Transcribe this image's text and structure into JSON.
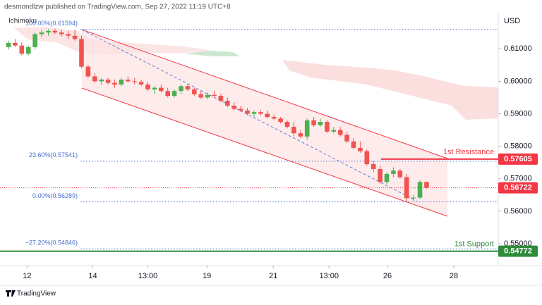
{
  "header": {
    "publisher": "desmondlzw published on TradingView.com, Sep 27, 2022 11:19 UTC+8",
    "brand": "TradingView"
  },
  "chart_data": {
    "type": "candlestick",
    "indicator": "Ichimoku",
    "currency": "USD",
    "up_color": "#4caf50",
    "down_color": "#f05350",
    "ylim": [
      0.5433,
      0.6211
    ],
    "yticks": [
      {
        "value": 0.55,
        "label": "0.55000"
      },
      {
        "value": 0.56,
        "label": "0.56000"
      },
      {
        "value": 0.57,
        "label": "0.57000"
      },
      {
        "value": 0.58,
        "label": "0.58000"
      },
      {
        "value": 0.59,
        "label": "0.59000"
      },
      {
        "value": 0.6,
        "label": "0.60000"
      },
      {
        "value": 0.61,
        "label": "0.61000"
      }
    ],
    "xlim": [
      -1.28,
      73.8
    ],
    "xticks": [
      {
        "value": 2.8,
        "label": "12"
      },
      {
        "value": 12.7,
        "label": "14"
      },
      {
        "value": 21,
        "label": "13:00"
      },
      {
        "value": 29.9,
        "label": "19"
      },
      {
        "value": 39.9,
        "label": "21"
      },
      {
        "value": 48.3,
        "label": "13:00"
      },
      {
        "value": 57.1,
        "label": "26"
      },
      {
        "value": 67.1,
        "label": "28"
      }
    ],
    "ohlc": [
      [
        0.6105,
        0.6125,
        0.6098,
        0.6118
      ],
      [
        0.6118,
        0.613,
        0.6105,
        0.611
      ],
      [
        0.611,
        0.612,
        0.608,
        0.6085
      ],
      [
        0.6085,
        0.611,
        0.608,
        0.6105
      ],
      [
        0.6105,
        0.615,
        0.61,
        0.6145
      ],
      [
        0.6145,
        0.6158,
        0.6135,
        0.615
      ],
      [
        0.615,
        0.616,
        0.614,
        0.6155
      ],
      [
        0.6155,
        0.6162,
        0.6145,
        0.615
      ],
      [
        0.615,
        0.6158,
        0.6138,
        0.6145
      ],
      [
        0.6145,
        0.6155,
        0.613,
        0.614
      ],
      [
        0.614,
        0.6159,
        0.6125,
        0.613
      ],
      [
        0.613,
        0.614,
        0.604,
        0.6045
      ],
      [
        0.6045,
        0.605,
        0.601,
        0.6015
      ],
      [
        0.6015,
        0.6025,
        0.5995,
        0.6
      ],
      [
        0.6,
        0.601,
        0.599,
        0.6005
      ],
      [
        0.6005,
        0.601,
        0.599,
        0.5995
      ],
      [
        0.5995,
        0.6005,
        0.598,
        0.599
      ],
      [
        0.599,
        0.601,
        0.5985,
        0.6005
      ],
      [
        0.6005,
        0.6015,
        0.5995,
        0.6
      ],
      [
        0.6,
        0.601,
        0.599,
        0.5998
      ],
      [
        0.5998,
        0.6005,
        0.5985,
        0.599
      ],
      [
        0.599,
        0.5998,
        0.597,
        0.5975
      ],
      [
        0.5975,
        0.5985,
        0.596,
        0.598
      ],
      [
        0.598,
        0.599,
        0.5965,
        0.597
      ],
      [
        0.597,
        0.598,
        0.595,
        0.5955
      ],
      [
        0.5955,
        0.5975,
        0.595,
        0.597
      ],
      [
        0.597,
        0.599,
        0.596,
        0.5985
      ],
      [
        0.5985,
        0.5992,
        0.597,
        0.5975
      ],
      [
        0.5975,
        0.598,
        0.5955,
        0.596
      ],
      [
        0.596,
        0.597,
        0.5945,
        0.595
      ],
      [
        0.595,
        0.5965,
        0.5945,
        0.5958
      ],
      [
        0.5958,
        0.597,
        0.595,
        0.5955
      ],
      [
        0.5955,
        0.5962,
        0.5935,
        0.594
      ],
      [
        0.594,
        0.595,
        0.592,
        0.5925
      ],
      [
        0.5925,
        0.5935,
        0.591,
        0.5915
      ],
      [
        0.5915,
        0.5925,
        0.5905,
        0.591
      ],
      [
        0.591,
        0.5918,
        0.5895,
        0.59
      ],
      [
        0.59,
        0.591,
        0.589,
        0.5905
      ],
      [
        0.5905,
        0.5912,
        0.5895,
        0.59
      ],
      [
        0.59,
        0.591,
        0.5885,
        0.589
      ],
      [
        0.589,
        0.5898,
        0.588,
        0.5885
      ],
      [
        0.5885,
        0.589,
        0.587,
        0.5875
      ],
      [
        0.5875,
        0.588,
        0.5855,
        0.586
      ],
      [
        0.586,
        0.5875,
        0.583,
        0.584
      ],
      [
        0.584,
        0.585,
        0.5825,
        0.583
      ],
      [
        0.583,
        0.5885,
        0.582,
        0.588
      ],
      [
        0.588,
        0.589,
        0.586,
        0.5865
      ],
      [
        0.5865,
        0.5885,
        0.586,
        0.5875
      ],
      [
        0.5875,
        0.588,
        0.584,
        0.5845
      ],
      [
        0.5845,
        0.586,
        0.584,
        0.585
      ],
      [
        0.585,
        0.586,
        0.583,
        0.5835
      ],
      [
        0.5835,
        0.5845,
        0.581,
        0.5815
      ],
      [
        0.5815,
        0.5825,
        0.579,
        0.5795
      ],
      [
        0.5795,
        0.5815,
        0.578,
        0.5785
      ],
      [
        0.5785,
        0.579,
        0.574,
        0.5745
      ],
      [
        0.5745,
        0.5755,
        0.572,
        0.573
      ],
      [
        0.573,
        0.574,
        0.5685,
        0.569
      ],
      [
        0.569,
        0.572,
        0.5685,
        0.5715
      ],
      [
        0.5715,
        0.5735,
        0.5705,
        0.5725
      ],
      [
        0.5725,
        0.573,
        0.57,
        0.5705
      ],
      [
        0.5705,
        0.5715,
        0.563,
        0.564
      ],
      [
        0.564,
        0.565,
        0.5632,
        0.5642
      ],
      [
        0.5642,
        0.5695,
        0.5638,
        0.569
      ],
      [
        0.569,
        0.5692,
        0.567,
        0.56722
      ]
    ],
    "fib_levels": [
      {
        "label": "100.00%(0.61594)",
        "value": 0.61594
      },
      {
        "label": "23.60%(0.57541)",
        "value": 0.57541
      },
      {
        "label": "0.00%(0.56289)",
        "value": 0.56289
      },
      {
        "label": "−27.20%(0.54846)",
        "value": 0.54846
      }
    ],
    "resistance": {
      "label": "1st Resistance",
      "value": 0.57605,
      "color": "#f23645"
    },
    "support": {
      "label": "1st Support",
      "value": 0.54772,
      "color": "#2e8b3a"
    },
    "last_price": 0.56722,
    "last_price_color": "#f23645"
  }
}
